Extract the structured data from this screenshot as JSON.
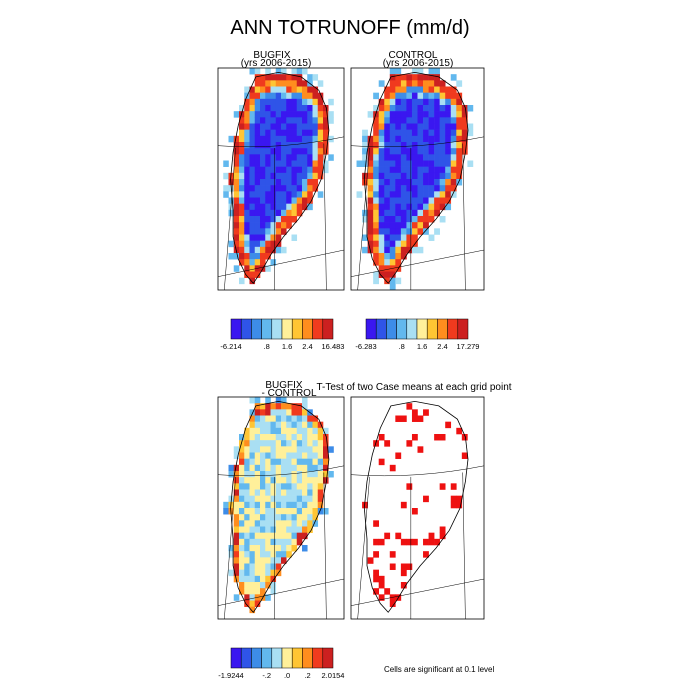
{
  "title": "ANN TOTRUNOFF (mm/d)",
  "panels": [
    {
      "id": "bugfix",
      "title_line1": "BUGFIX",
      "title_line2": "(yrs 2006-2015)",
      "palette": "abs",
      "seed": 11
    },
    {
      "id": "control",
      "title_line1": "CONTROL",
      "title_line2": "(yrs 2006-2015)",
      "palette": "abs",
      "seed": 23
    },
    {
      "id": "diff",
      "title_line1": "BUGFIX",
      "title_line2": "- CONTROL",
      "palette": "diff",
      "seed": 37
    },
    {
      "id": "ttest",
      "title_line1": "T-Test of two Case means at each grid point",
      "title_line2": "",
      "palette": "sig",
      "seed": 51
    }
  ],
  "colorbars": [
    {
      "id": "bugfix",
      "labels": [
        "-6.214",
        ".8",
        "1.6",
        "2.4",
        "16.483"
      ]
    },
    {
      "id": "control",
      "labels": [
        "-6.283",
        ".8",
        "1.6",
        "2.4",
        "17.279"
      ]
    },
    {
      "id": "diff",
      "labels": [
        "-1.9244",
        "-.2",
        ".0",
        ".2",
        "2.0154"
      ]
    }
  ],
  "significance_note": "Cells are significant at 0.1 level",
  "colors": {
    "abs": [
      "#3a17f0",
      "#2f54e8",
      "#3d8ce8",
      "#62b8ee",
      "#a9dff3",
      "#fff09a",
      "#ffc533",
      "#ff8d1e",
      "#f03a1e",
      "#cc2020"
    ],
    "diff": [
      "#3a17f0",
      "#2f54e8",
      "#3d8ce8",
      "#62b8ee",
      "#a9dff3",
      "#fff09a",
      "#ffc533",
      "#ff8d1e",
      "#f03a1e",
      "#cc2020"
    ],
    "sig": "#ee1111"
  },
  "chart_data": [
    {
      "type": "heatmap",
      "title": "BUGFIX (yrs 2006-2015)",
      "colorbar_ticks": [
        "-6.214",
        ".8",
        "1.6",
        "2.4",
        "16.483"
      ],
      "vmin": -6.214,
      "vmax": 16.483
    },
    {
      "type": "heatmap",
      "title": "CONTROL (yrs 2006-2015)",
      "colorbar_ticks": [
        "-6.283",
        ".8",
        "1.6",
        "2.4",
        "17.279"
      ],
      "vmin": -6.283,
      "vmax": 17.279
    },
    {
      "type": "heatmap",
      "title": "BUGFIX - CONTROL",
      "colorbar_ticks": [
        "-1.9244",
        "-.2",
        ".0",
        ".2",
        "2.0154"
      ],
      "vmin": -1.9244,
      "vmax": 2.0154
    },
    {
      "type": "heatmap",
      "title": "T-Test of two Case means at each grid point",
      "annotation": "Cells are significant at 0.1 level"
    }
  ]
}
